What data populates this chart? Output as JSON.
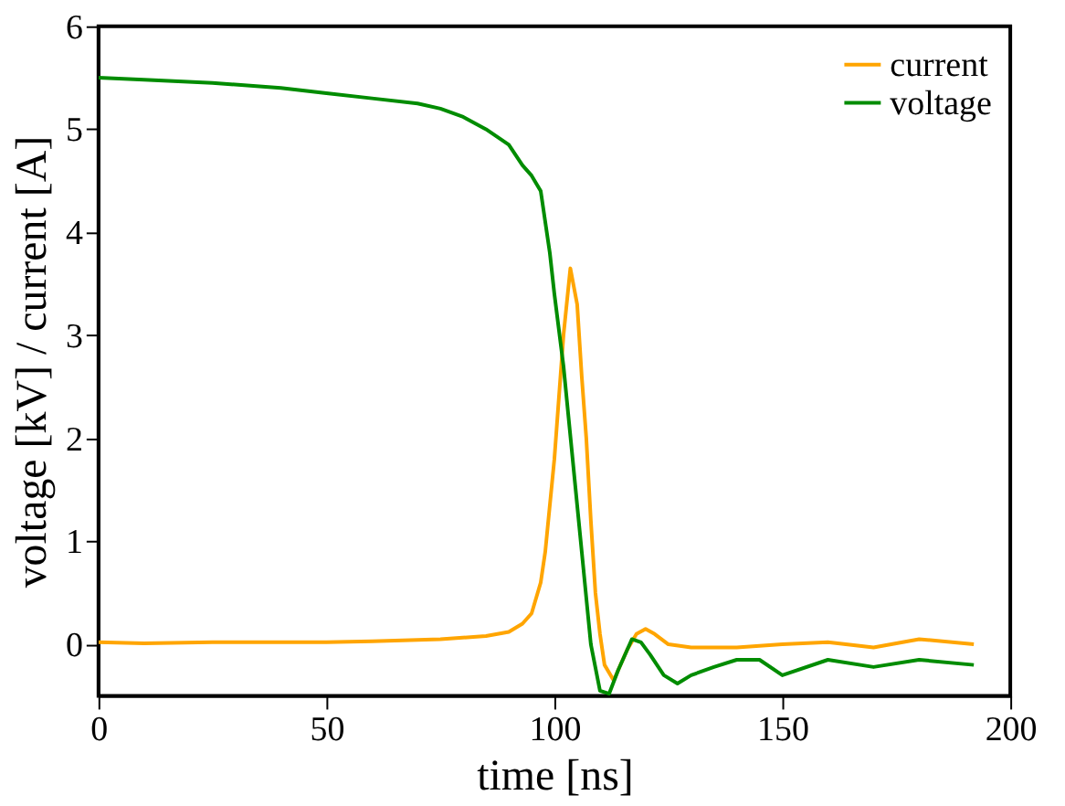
{
  "chart_data": {
    "type": "line",
    "xlabel": "time [ns]",
    "ylabel": "voltage [kV] / current [A]",
    "xlim": [
      0,
      200
    ],
    "xticks": [
      0,
      50,
      100,
      150,
      200
    ],
    "ylim": [
      -0.5,
      6
    ],
    "yticks": [
      0,
      1,
      2,
      3,
      4,
      5,
      6
    ],
    "grid": false,
    "legend": "top right",
    "marker": "none",
    "line_style": "solid",
    "series": [
      {
        "name": "current",
        "color": "#ffa500",
        "x": [
          0,
          10,
          25,
          50,
          60,
          75,
          85,
          90,
          93,
          95,
          97,
          98,
          100,
          102,
          103.5,
          105,
          106,
          107,
          108,
          109,
          110,
          111,
          113,
          116,
          118,
          120,
          122,
          125,
          130,
          140,
          150,
          160,
          170,
          180,
          192
        ],
        "values": [
          0.02,
          0.01,
          0.02,
          0.02,
          0.03,
          0.05,
          0.08,
          0.12,
          0.2,
          0.3,
          0.6,
          0.9,
          1.8,
          3.0,
          3.65,
          3.3,
          2.6,
          2.0,
          1.2,
          0.5,
          0.1,
          -0.2,
          -0.35,
          -0.05,
          0.1,
          0.15,
          0.1,
          0.0,
          -0.03,
          -0.03,
          0.0,
          0.02,
          -0.03,
          0.05,
          0.0
        ]
      },
      {
        "name": "voltage",
        "color": "#008c00",
        "x": [
          0,
          10,
          25,
          40,
          50,
          60,
          70,
          75,
          80,
          85,
          90,
          93,
          95,
          97,
          99,
          100,
          102,
          104,
          106,
          108,
          110,
          112,
          114,
          116,
          117,
          119,
          121,
          124,
          127,
          130,
          135,
          140,
          145,
          150,
          160,
          170,
          180,
          192
        ],
        "values": [
          5.5,
          5.48,
          5.45,
          5.4,
          5.35,
          5.3,
          5.25,
          5.2,
          5.12,
          5.0,
          4.85,
          4.65,
          4.55,
          4.4,
          3.8,
          3.4,
          2.7,
          1.8,
          0.9,
          0.0,
          -0.45,
          -0.48,
          -0.25,
          -0.05,
          0.05,
          0.02,
          -0.1,
          -0.3,
          -0.38,
          -0.3,
          -0.22,
          -0.15,
          -0.15,
          -0.3,
          -0.15,
          -0.22,
          -0.15,
          -0.2
        ]
      }
    ]
  }
}
